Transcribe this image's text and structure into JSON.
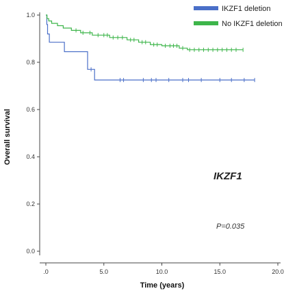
{
  "chart_data": {
    "type": "line",
    "xlabel": "Time (years)",
    "ylabel": "Overall survival",
    "xlim": [
      0,
      20
    ],
    "ylim": [
      0,
      1.0
    ],
    "x_ticks": [
      ".0",
      "5.0",
      "10.0",
      "15.0",
      "20.0"
    ],
    "y_ticks": [
      "0.0",
      "0.2",
      "0.4",
      "0.6",
      "0.8",
      "1.0"
    ],
    "grid": false,
    "legend_position": "top-right",
    "annotations": [
      "IKZF1",
      "P=0.035"
    ],
    "series": [
      {
        "name": "IKZF1 deletion",
        "color": "#4a6fc8",
        "x": [
          0,
          0.08,
          0.08,
          0.15,
          0.15,
          0.3,
          0.3,
          0.8,
          0.8,
          1.6,
          1.6,
          3.6,
          3.6,
          4.2,
          4.2,
          18.0
        ],
        "y": [
          1.0,
          1.0,
          0.96,
          0.96,
          0.92,
          0.92,
          0.885,
          0.885,
          0.885,
          0.885,
          0.845,
          0.845,
          0.77,
          0.77,
          0.725,
          0.725
        ],
        "censor_x": [
          3.9,
          6.4,
          6.7,
          8.4,
          9.1,
          9.5,
          10.6,
          11.8,
          12.3,
          13.4,
          15.0,
          16.0,
          17.1,
          18.0
        ]
      },
      {
        "name": "No IKZF1 deletion",
        "color": "#3db54a",
        "x": [
          0,
          0.1,
          0.1,
          0.25,
          0.25,
          0.5,
          0.5,
          1.0,
          1.0,
          1.5,
          1.5,
          2.2,
          2.2,
          3.0,
          3.0,
          4.0,
          4.0,
          5.5,
          5.5,
          7.0,
          7.0,
          8.0,
          8.0,
          9.0,
          9.0,
          10.0,
          10.0,
          11.5,
          11.5,
          12.2,
          12.2,
          17.0
        ],
        "y": [
          1.0,
          1.0,
          0.985,
          0.985,
          0.975,
          0.975,
          0.965,
          0.965,
          0.955,
          0.955,
          0.945,
          0.945,
          0.935,
          0.935,
          0.925,
          0.925,
          0.915,
          0.915,
          0.905,
          0.905,
          0.895,
          0.895,
          0.885,
          0.885,
          0.875,
          0.875,
          0.87,
          0.87,
          0.86,
          0.86,
          0.853,
          0.853
        ],
        "censor_x": [
          2.6,
          3.2,
          3.8,
          4.5,
          5.0,
          5.3,
          5.8,
          6.2,
          6.6,
          7.3,
          7.6,
          8.3,
          8.6,
          9.3,
          9.6,
          10.3,
          10.7,
          11.0,
          11.3,
          11.8,
          12.4,
          12.8,
          13.2,
          13.6,
          14.0,
          14.4,
          14.8,
          15.2,
          15.6,
          16.0,
          16.4,
          17.0
        ]
      }
    ]
  }
}
